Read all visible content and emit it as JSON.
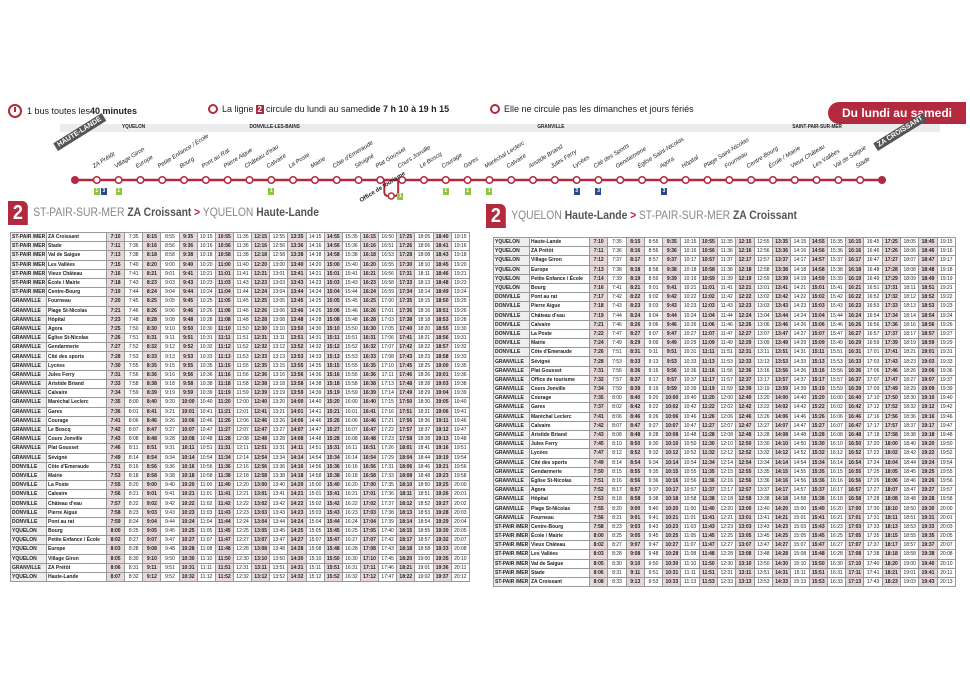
{
  "header": {
    "frequency_pre": "1 bus toutes les ",
    "frequency_bold": "40 minutes",
    "line_pre": "La ligne ",
    "line_num": "2",
    "line_mid": " circule du lundi au samedi ",
    "line_bold": "de 7 h 10 à 19 h 15",
    "no_service": "Elle ne circule pas les dimanches et jours fériés",
    "days_pill": "Du lundi au samedi"
  },
  "towns": [
    "YQUELON",
    "DONVILLE-LES-BAINS",
    "GRANVILLE",
    "SAINT-PAIR-SUR-MER"
  ],
  "route": {
    "start_terminal": "HAUTE-LANDE",
    "end_terminal": "ZA CROISSANT",
    "stops": [
      "ZA Prétôt",
      "Village Giron",
      "Europe",
      "Petite Enfance / École",
      "Bourg",
      "Pont au Rat",
      "Pierre Aigue",
      "Château d'eau",
      "Calvaire",
      "La Poste",
      "Mairie",
      "Côte d'Emeraude",
      "Sévigné",
      "Plat Gousset",
      "Cours Jonville",
      "Le Boscq",
      "Courage",
      "Gares",
      "Maréchal Leclerc",
      "Calvaire",
      "Aristide Briand",
      "Jules Ferry",
      "Lycées",
      "Cité des Sports",
      "Gendarmerie",
      "Église Saint-Nicolas",
      "Agora",
      "Hôpital",
      "Plage Saint-Nicolas",
      "Fourneau",
      "Centre-Bourg",
      "École / Mairie",
      "Vieux Château",
      "Les Vallées",
      "Val de Saigue",
      "Stade"
    ],
    "loop_stop": "Office de tourisme",
    "connections": [
      {
        "stop": "ZA Prétôt",
        "lines": [
          "1",
          "3"
        ]
      },
      {
        "stop": "Village Giron",
        "lines": [
          "1"
        ]
      },
      {
        "stop": "Office de tourisme",
        "lines": [
          "1"
        ]
      },
      {
        "stop": "Courage",
        "lines": [
          "1"
        ]
      },
      {
        "stop": "Gares",
        "lines": [
          "1"
        ]
      },
      {
        "stop": "Maréchal Leclerc",
        "lines": [
          "1"
        ]
      },
      {
        "stop": "Calvaire",
        "lines": [
          "1"
        ]
      },
      {
        "stop": "Lycées",
        "lines": [
          "3"
        ]
      },
      {
        "stop": "Cité des Sports",
        "lines": [
          "3"
        ]
      },
      {
        "stop": "Agora",
        "lines": [
          "3"
        ]
      }
    ],
    "colors": {
      "line": "#b3293e",
      "line1": "#8dc63f",
      "line3": "#2b4a8b"
    }
  },
  "tables": [
    {
      "num": "2",
      "from_town": "ST-PAIR-SUR-MER",
      "from_stop": "ZA Croissant",
      "arrow": ">",
      "to_town": "YQUELON",
      "to_stop": "Haute-Lande",
      "rows": [
        [
          "ST-PAIR /MER",
          "ZA Croissant",
          "7:10 7:35 8:15 8:55 9:35 10:15 10:55 11:35 12:15 12:55 13:35 14:15 14:55 15:35 16:15 16:50 17:25 18:05 18:40 19:15"
        ],
        [
          "ST-PAIR /MER",
          "Stade",
          "7:11 7:36 8:16 8:56 9:36 10:16 10:56 11:36 12:16 12:56 13:36 14:16 14:56 15:36 16:16 16:51 17:26 18:06 18:41 19:16"
        ],
        [
          "ST-PAIR /MER",
          "Val de Saigue",
          "7:13 7:38 8:18 8:58 9:38 10:18 10:58 11:38 12:18 12:58 13:38 14:18 14:58 15:38 16:18 16:53 17:28 18:08 18:43 19:18"
        ],
        [
          "ST-PAIR /MER",
          "Les Vallées",
          "7:15 7:40 8:20 9:00 9:40 10:20 11:00 11:40 12:20 13:00 13:40 14:20 15:00 15:40 16:20 16:55 17:30 18:10 18:45 19:20"
        ],
        [
          "ST-PAIR /MER",
          "Vieux Château",
          "7:16 7:41 8:21 9:01 9:41 10:21 11:01 11:41 12:21 13:01 13:41 14:21 15:01 15:41 16:21 16:56 17:31 18:11 18:46 19:21"
        ],
        [
          "ST-PAIR /MER",
          "École / Mairie",
          "7:18 7:43 8:23 9:03 9:43 10:23 11:03 11:43 12:23 13:03 13:43 14:23 15:03 15:43 16:23 16:58 17:33 18:13 18:48 19:23"
        ],
        [
          "ST-PAIR /MER",
          "Centre-Bourg",
          "7:19 7:44 8:24 9:04 9:44 10:24 11:04 11:44 12:24 13:04 13:44 14:24 15:04 15:44 16:24 16:59 17:34 18:14 18:49 19:24"
        ],
        [
          "GRANVILLE",
          "Fourneau",
          "7:20 7:45 8:25 9:05 9:45 10:25 11:05 11:45 12:25 13:05 13:45 14:25 15:05 15:45 16:25 17:00 17:35 18:15 18:50 19:25"
        ],
        [
          "GRANVILLE",
          "Plage St-Nicolas",
          "7:21 7:46 8:26 9:06 9:46 10:26 11:06 11:46 12:26 13:06 13:46 14:26 15:06 15:46 16:26 17:01 17:36 18:16 18:51 19:26"
        ],
        [
          "GRANVILLE",
          "Hôpital",
          "7:23 7:48 8:28 9:08 9:48 10:28 11:08 11:48 12:28 13:08 13:48 14:28 15:08 15:48 16:28 17:03 17:38 18:18 18:53 19:28"
        ],
        [
          "GRANVILLE",
          "Agora",
          "7:25 7:50 8:30 9:10 9:50 10:30 11:10 11:50 12:30 13:10 13:50 14:30 15:10 15:50 16:30 17:05 17:40 18:20 18:55 19:30"
        ],
        [
          "GRANVILLE",
          "Église St-Nicolas",
          "7:26 7:51 8:31 9:11 9:51 10:31 11:11 11:51 12:31 13:11 13:51 14:31 15:11 15:51 16:31 17:06 17:41 18:21 18:56 19:31"
        ],
        [
          "GRANVILLE",
          "Gendarmerie",
          "7:27 7:52 8:32 9:12 9:52 10:32 11:12 11:52 12:32 13:12 13:52 14:32 15:12 15:52 16:32 17:07 17:42 18:22 18:57 19:32"
        ],
        [
          "GRANVILLE",
          "Cité des sports",
          "7:28 7:53 8:33 9:13 9:53 10:33 11:13 11:53 12:33 13:13 13:53 14:33 15:13 15:53 16:33 17:08 17:43 18:23 18:58 19:33"
        ],
        [
          "GRANVILLE",
          "Lycées",
          "7:30 7:55 8:35 9:15 9:55 10:35 11:15 11:55 12:35 13:15 13:55 14:35 15:15 15:55 16:35 17:10 17:45 18:25 19:00 19:35"
        ],
        [
          "GRANVILLE",
          "Jules Ferry",
          "7:31 7:56 8:36 9:16 9:56 10:36 11:16 11:56 12:36 13:16 13:56 14:36 15:16 15:56 16:36 17:11 17:46 18:26 19:01 19:36"
        ],
        [
          "GRANVILLE",
          "Aristide Briand",
          "7:33 7:58 8:38 9:18 9:58 10:38 11:18 11:58 12:38 13:18 13:58 14:38 15:18 15:58 16:38 17:13 17:48 18:28 19:03 19:38"
        ],
        [
          "GRANVILLE",
          "Calvaire",
          "7:34 7:59 8:39 9:19 9:59 10:39 11:19 11:59 12:39 13:19 13:59 14:39 15:19 15:59 16:39 17:14 17:49 18:29 19:04 19:39"
        ],
        [
          "GRANVILLE",
          "Maréchal Leclerc",
          "7:35 8:00 8:40 9:20 10:00 10:40 11:20 12:00 12:40 13:20 14:00 14:40 15:20 16:00 16:40 17:15 17:50 18:30 19:05 19:40"
        ],
        [
          "GRANVILLE",
          "Gares",
          "7:36 8:01 8:41 9:21 10:01 10:41 11:21 12:01 12:41 13:21 14:01 14:41 15:21 16:01 16:41 17:16 17:51 18:31 19:06 19:41"
        ],
        [
          "GRANVILLE",
          "Courage",
          "7:41 8:06 8:46 9:26 10:06 10:46 11:26 12:06 12:46 13:26 14:06 14:46 15:26 16:06 16:46 17:21 17:56 18:36 19:11 19:46"
        ],
        [
          "GRANVILLE",
          "Le Boscq",
          "7:42 8:07 8:47 9:27 10:07 10:47 11:27 12:07 12:47 13:27 14:07 14:47 15:27 16:07 16:47 17:22 17:57 18:37 19:12 19:47"
        ],
        [
          "GRANVILLE",
          "Cours Jonville",
          "7:43 8:08 8:48 9:28 10:08 10:48 11:28 12:08 12:48 13:28 14:08 14:48 15:28 16:08 16:48 17:23 17:58 18:38 19:13 19:48"
        ],
        [
          "GRANVILLE",
          "Plat Gousset",
          "7:46 8:11 8:51 9:31 10:11 10:51 11:31 12:11 12:51 13:31 14:11 14:51 15:31 16:11 16:51 17:26 18:01 18:41 19:16 19:51"
        ],
        [
          "GRANVILLE",
          "Sévigné",
          "7:49 8:14 8:54 9:34 10:14 10:54 11:34 12:14 12:54 13:34 14:14 14:54 15:34 16:14 16:54 17:29 18:04 18:44 19:19 19:54"
        ],
        [
          "DONVILLE",
          "Côte d'Emeraude",
          "7:51 8:16 8:56 9:36 10:16 10:56 11:36 12:16 12:56 13:36 14:16 14:56 15:36 16:16 16:56 17:31 18:06 18:46 19:21 19:56"
        ],
        [
          "DONVILLE",
          "Mairie",
          "7:53 8:18 8:58 9:38 10:18 10:58 11:38 12:18 12:58 13:38 14:18 14:58 15:38 16:18 16:58 17:33 18:08 18:48 19:23 19:58"
        ],
        [
          "DONVILLE",
          "La Poste",
          "7:55 8:20 9:00 9:40 10:20 11:00 11:40 12:20 13:00 13:40 14:20 15:00 15:40 16:20 17:00 17:35 18:10 18:50 19:25 20:00"
        ],
        [
          "DONVILLE",
          "Calvaire",
          "7:56 8:21 9:01 9:41 10:21 11:01 11:41 12:21 13:01 13:41 14:21 15:01 15:41 16:21 17:01 17:36 18:11 18:51 19:26 20:01"
        ],
        [
          "DONVILLE",
          "Château d'eau",
          "7:57 8:22 9:02 9:42 10:22 11:02 11:42 12:22 13:02 13:42 14:22 15:02 15:42 16:22 17:02 17:37 18:12 18:52 19:27 20:02"
        ],
        [
          "DONVILLE",
          "Pierre Aigue",
          "7:58 8:23 9:03 9:43 10:23 11:03 11:43 12:23 13:03 13:43 14:23 15:03 15:43 16:23 17:03 17:38 18:13 18:53 19:28 20:03"
        ],
        [
          "DONVILLE",
          "Pont au rat",
          "7:59 8:24 9:04 9:44 10:24 11:04 11:44 12:24 13:04 13:44 14:24 15:04 15:44 16:24 17:04 17:39 18:14 18:54 19:29 20:04"
        ],
        [
          "YQUELON",
          "Bourg",
          "8:00 8:25 9:05 9:45 10:25 11:05 11:45 12:25 13:05 13:45 14:25 15:05 15:45 16:25 17:05 17:40 18:15 18:55 19:30 20:05"
        ],
        [
          "YQUELON",
          "Petite Enfance / École",
          "8:02 8:27 9:07 9:47 10:27 11:07 11:47 12:27 13:07 13:47 14:27 15:07 15:47 16:27 17:07 17:42 18:17 18:57 19:32 20:07"
        ],
        [
          "YQUELON",
          "Europe",
          "8:03 8:28 9:08 9:48 10:28 11:08 11:48 12:28 13:08 13:48 14:28 15:08 15:48 16:28 17:08 17:43 18:18 18:58 19:33 20:08"
        ],
        [
          "YQUELON",
          "Village Giron",
          "8:05 8:30 9:10 9:50 10:30 11:10 11:50 12:30 13:10 13:50 14:30 15:10 15:50 16:30 17:10 17:45 18:20 19:00 19:35 20:10"
        ],
        [
          "GRANVILLE",
          "ZA Prétôt",
          "8:06 8:31 9:11 9:51 10:31 11:11 11:51 12:31 13:11 13:51 14:31 15:11 15:51 16:31 17:11 17:46 18:21 19:01 19:36 20:11"
        ],
        [
          "YQUELON",
          "Haute-Lande",
          "8:07 8:32 9:12 9:52 10:32 11:12 11:52 12:32 13:12 13:52 14:32 15:12 15:52 16:32 17:12 17:47 18:22 19:02 19:37 20:12"
        ]
      ]
    },
    {
      "num": "2",
      "from_town": "YQUELON",
      "from_stop": "Haute-Lande",
      "arrow": ">",
      "to_town": "ST-PAIR-SUR-MER",
      "to_stop": "ZA Croissant",
      "rows": [
        [
          "YQUELON",
          "Haute-Lande",
          "7:10 7:35 8:15 8:55 9:35 10:15 10:55 11:35 12:15 12:55 13:35 14:15 14:55 15:35 16:15 16:45 17:25 18:05 18:45 19:15"
        ],
        [
          "YQUELON",
          "ZA Prétôt",
          "7:11 7:36 8:16 8:56 9:36 10:16 10:56 11:36 12:16 12:56 13:36 14:16 14:56 15:36 16:16 16:46 17:26 18:06 18:46 19:16"
        ],
        [
          "YQUELON",
          "Village Giron",
          "7:12 7:37 8:17 8:57 9:37 10:17 10:57 11:37 12:17 12:57 13:37 14:17 14:57 15:37 16:17 16:47 17:27 18:07 18:47 19:17"
        ],
        [
          "YQUELON",
          "Europe",
          "7:13 7:38 8:18 8:58 9:38 10:18 10:58 11:38 12:18 12:58 13:38 14:18 14:58 15:38 16:18 16:48 17:28 18:08 18:48 19:18"
        ],
        [
          "YQUELON",
          "Petite Enfance / École",
          "7:14 7:39 8:19 8:59 9:39 10:19 10:59 11:39 12:19 12:59 13:39 14:19 14:59 15:39 16:19 16:49 17:29 18:09 18:49 19:19"
        ],
        [
          "YQUELON",
          "Bourg",
          "7:16 7:41 8:21 9:01 9:41 10:21 11:01 11:41 12:21 13:01 13:41 14:21 15:01 15:41 16:21 16:51 17:31 18:11 18:51 19:21"
        ],
        [
          "DONVILLE",
          "Pont au rat",
          "7:17 7:42 8:22 9:02 9:42 10:22 11:02 11:42 12:22 13:02 13:42 14:22 15:02 15:42 16:22 16:52 17:32 18:12 18:52 19:22"
        ],
        [
          "DONVILLE",
          "Pierre Aigue",
          "7:18 7:43 8:23 9:03 9:43 10:23 11:03 11:43 12:23 13:03 13:43 14:23 15:03 15:43 16:23 16:53 17:33 18:13 18:53 19:23"
        ],
        [
          "DONVILLE",
          "Château d'eau",
          "7:19 7:44 8:24 9:04 9:44 10:24 11:04 11:44 12:24 13:04 13:44 14:24 15:04 15:44 16:24 16:54 17:34 18:14 18:54 19:24"
        ],
        [
          "DONVILLE",
          "Calvaire",
          "7:21 7:46 8:26 9:06 9:46 10:26 11:06 11:46 12:26 13:06 13:46 14:26 15:06 15:46 16:26 16:56 17:36 18:16 18:56 19:26"
        ],
        [
          "DONVILLE",
          "La Poste",
          "7:22 7:47 8:27 9:07 9:47 10:27 11:07 11:47 12:27 13:07 13:47 14:27 15:07 15:47 16:27 16:57 17:37 18:17 18:57 19:27"
        ],
        [
          "DONVILLE",
          "Mairie",
          "7:24 7:49 8:29 9:09 9:49 10:29 11:09 11:49 12:29 13:09 13:49 14:29 15:09 15:49 16:29 16:59 17:39 18:19 18:59 19:29"
        ],
        [
          "DONVILLE",
          "Côte d'Emeraude",
          "7:26 7:51 8:31 9:11 9:51 10:31 11:11 11:51 12:31 13:11 13:51 14:31 15:11 15:51 16:31 17:01 17:41 18:21 19:01 19:31"
        ],
        [
          "GRANVILLE",
          "Sévigné",
          "7:28 7:53 8:33 9:13 9:53 10:33 11:13 11:53 12:33 13:13 13:53 14:33 15:13 15:53 16:33 17:03 17:43 18:23 19:03 19:33"
        ],
        [
          "GRANVILLE",
          "Plat Gousset",
          "7:31 7:56 8:36 9:16 9:56 10:36 11:16 11:56 12:36 13:16 13:56 14:36 15:16 15:56 16:36 17:06 17:46 18:26 19:06 19:36"
        ],
        [
          "GRANVILLE",
          "Office de tourisme",
          "7:32 7:57 8:37 9:17 9:57 10:37 11:17 11:57 12:37 13:17 13:57 14:37 15:17 15:57 16:37 17:07 17:47 18:27 19:07 19:37"
        ],
        [
          "GRANVILLE",
          "Cours Jonville",
          "7:34 7:59 8:39 9:19 9:59 10:39 11:19 11:59 12:39 13:19 13:59 14:39 15:19 15:59 16:39 17:09 17:49 18:29 19:09 19:39"
        ],
        [
          "GRANVILLE",
          "Courage",
          "7:35 8:00 8:40 9:20 10:00 10:40 11:20 12:00 12:40 13:20 14:00 14:40 15:20 16:00 16:40 17:10 17:50 18:30 19:10 19:40"
        ],
        [
          "GRANVILLE",
          "Gares",
          "7:37 8:02 8:42 9:22 10:02 10:42 11:22 12:02 12:42 13:22 14:02 14:42 15:22 16:02 16:42 17:12 17:52 18:32 19:12 19:42"
        ],
        [
          "GRANVILLE",
          "Maréchal Leclerc",
          "7:41 8:06 8:46 9:26 10:06 10:46 11:26 12:06 12:46 13:26 14:06 14:46 15:26 16:06 16:46 17:16 17:56 18:36 19:16 19:46"
        ],
        [
          "GRANVILLE",
          "Calvaire",
          "7:42 8:07 8:47 9:27 10:07 10:47 11:27 12:07 12:47 13:27 14:07 14:47 15:27 16:07 16:47 17:17 17:57 18:37 19:17 19:47"
        ],
        [
          "GRANVILLE",
          "Aristide Briand",
          "7:43 8:08 8:48 9:28 10:08 10:48 11:28 12:08 12:48 13:28 14:08 14:48 15:28 16:08 16:48 17:18 17:58 18:38 19:18 19:48"
        ],
        [
          "GRANVILLE",
          "Jules Ferry",
          "7:45 8:10 8:50 9:30 10:10 10:50 11:30 12:10 12:50 13:30 14:10 14:50 15:30 16:10 16:50 17:20 18:00 18:40 19:20 19:50"
        ],
        [
          "GRANVILLE",
          "Lycées",
          "7:47 8:12 8:52 9:32 10:12 10:52 11:32 12:12 12:52 13:32 14:12 14:52 15:32 16:12 16:52 17:22 18:02 18:42 19:22 19:52"
        ],
        [
          "GRANVILLE",
          "Cité des sports",
          "7:49 8:14 8:54 9:34 10:14 10:54 11:34 12:14 12:54 13:34 14:14 14:54 15:34 16:14 16:54 17:24 18:04 18:44 19:24 19:54"
        ],
        [
          "GRANVILLE",
          "Gendarmerie",
          "7:50 8:15 8:55 9:35 10:15 10:55 11:35 12:15 12:55 13:35 14:15 14:55 15:35 16:15 16:55 17:25 18:05 18:45 19:25 19:55"
        ],
        [
          "GRANVILLE",
          "Église St-Nicolas",
          "7:51 8:16 8:56 9:36 10:16 10:56 11:36 12:16 12:56 13:36 14:16 14:56 15:36 16:16 16:56 17:26 18:06 18:46 19:26 19:56"
        ],
        [
          "GRANVILLE",
          "Agora",
          "7:52 8:17 8:57 9:37 10:17 10:57 11:37 12:17 12:57 13:37 14:17 14:57 15:37 16:17 16:57 17:27 18:07 18:47 19:27 19:57"
        ],
        [
          "GRANVILLE",
          "Hôpital",
          "7:53 8:18 8:58 9:38 10:18 10:58 11:38 12:18 12:58 13:38 14:18 14:58 15:38 16:18 16:58 17:28 18:08 18:48 19:28 19:58"
        ],
        [
          "GRANVILLE",
          "Plage St-Nicolas",
          "7:55 8:20 9:00 9:40 10:20 11:00 11:40 12:20 13:00 13:40 14:20 15:00 15:40 16:20 17:00 17:30 18:10 18:50 19:30 20:00"
        ],
        [
          "GRANVILLE",
          "Fourneau",
          "7:56 8:21 9:01 9:41 10:21 11:01 11:41 12:21 13:01 13:41 14:21 15:01 15:41 16:21 17:01 17:31 18:11 18:51 19:31 20:01"
        ],
        [
          "ST-PAIR /MER",
          "Centre-Bourg",
          "7:58 8:23 9:03 9:43 10:23 11:03 11:43 12:23 13:03 13:43 14:23 15:03 15:43 16:23 17:03 17:33 18:13 18:53 19:33 20:03"
        ],
        [
          "ST-PAIR /MER",
          "École / Mairie",
          "8:00 8:25 9:05 9:45 10:25 11:05 11:45 12:25 13:05 13:45 14:25 15:05 15:45 16:25 17:05 17:35 18:15 18:55 19:35 20:05"
        ],
        [
          "ST-PAIR /MER",
          "Vieux Château",
          "8:02 8:27 9:07 9:47 10:27 11:07 11:47 12:27 13:07 13:47 14:27 15:07 15:47 16:27 17:07 17:37 18:17 18:57 19:37 20:07"
        ],
        [
          "ST-PAIR /MER",
          "Les Vallées",
          "8:03 8:28 9:08 9:48 10:28 11:08 11:48 12:28 13:08 13:48 14:28 15:08 15:48 16:28 17:08 17:38 18:18 18:58 19:38 20:08"
        ],
        [
          "ST-PAIR /MER",
          "Val de Saigue",
          "8:05 8:30 9:10 9:50 10:30 11:10 11:50 12:30 13:10 13:50 14:30 15:10 15:50 16:30 17:10 17:40 18:20 19:00 19:40 20:10"
        ],
        [
          "ST-PAIR /MER",
          "Stade",
          "8:06 8:31 9:11 9:51 10:31 11:11 11:51 12:31 13:11 13:51 14:31 15:11 15:51 16:31 17:11 17:41 18:21 19:01 19:41 20:11"
        ],
        [
          "ST-PAIR /MER",
          "ZA Croissant",
          "8:08 8:33 9:13 9:53 10:33 11:13 11:53 12:33 13:13 13:53 14:33 15:13 15:53 16:33 17:13 17:43 18:23 19:03 19:43 20:13"
        ]
      ]
    }
  ]
}
